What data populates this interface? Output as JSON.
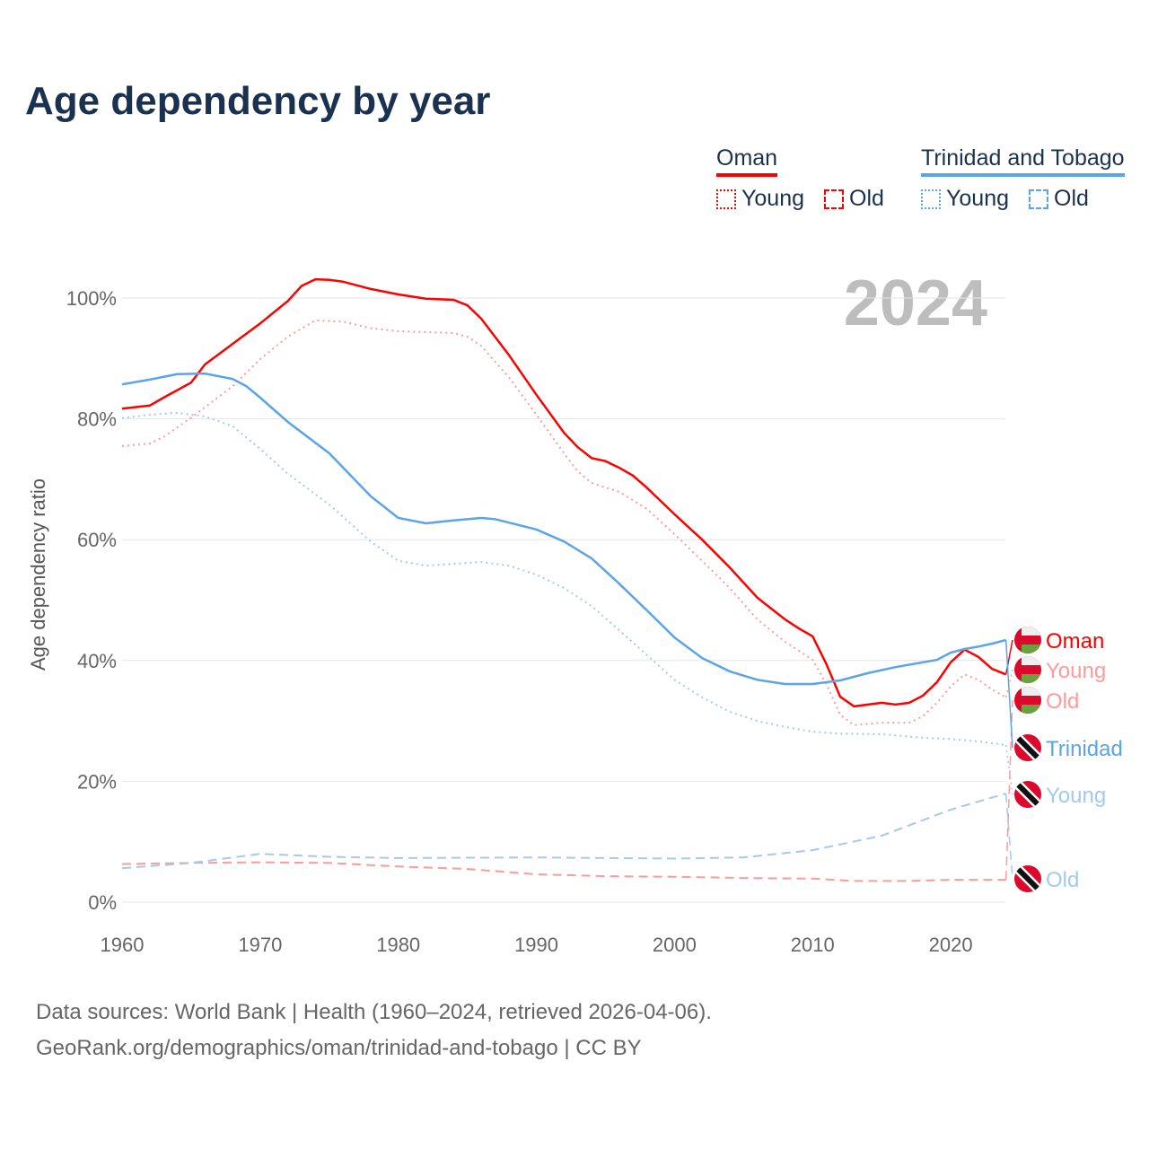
{
  "title": "Age dependency by year",
  "legend": {
    "groups": [
      {
        "name": "Oman",
        "color": "#ff0000",
        "items": [
          "Young",
          "Old"
        ]
      },
      {
        "name": "Trinidad and Tobago",
        "color": "#5ba3ea",
        "items": [
          "Young",
          "Old"
        ]
      }
    ]
  },
  "source": {
    "line1": "Data sources: World Bank | Health (1960–2024, retrieved 2026-04-06).",
    "line2": "GeoRank.org/demographics/oman/trinidad-and-tobago | CC BY"
  },
  "chart_data": {
    "type": "line",
    "title": "Age dependency by year",
    "xlabel": "",
    "ylabel": "Age dependency ratio",
    "year_label": "2024",
    "xlim": [
      1960,
      2024
    ],
    "ylim": [
      0,
      100
    ],
    "xticks": [
      "1960",
      "1970",
      "1980",
      "1990",
      "2000",
      "2010",
      "2020"
    ],
    "yticks": [
      "0%",
      "20%",
      "40%",
      "60%",
      "80%",
      "100%"
    ],
    "series": [
      {
        "name": "Oman",
        "end_label": "Oman",
        "color": "#ff0000",
        "dash": "solid",
        "points": [
          [
            1960,
            81.7
          ],
          [
            1962,
            82.2
          ],
          [
            1963,
            83.5
          ],
          [
            1965,
            86
          ],
          [
            1966,
            89
          ],
          [
            1968,
            92.4
          ],
          [
            1970,
            95.8
          ],
          [
            1972,
            99.5
          ],
          [
            1973,
            102
          ],
          [
            1974,
            103.1
          ],
          [
            1975,
            103
          ],
          [
            1976,
            102.7
          ],
          [
            1978,
            101.5
          ],
          [
            1980,
            100.6
          ],
          [
            1982,
            99.9
          ],
          [
            1984,
            99.7
          ],
          [
            1985,
            98.8
          ],
          [
            1986,
            96.6
          ],
          [
            1988,
            90.6
          ],
          [
            1990,
            84
          ],
          [
            1992,
            77.7
          ],
          [
            1993,
            75.3
          ],
          [
            1994,
            73.5
          ],
          [
            1995,
            73
          ],
          [
            1996,
            71.9
          ],
          [
            1997,
            70.6
          ],
          [
            1998,
            68.6
          ],
          [
            2000,
            64.2
          ],
          [
            2002,
            60
          ],
          [
            2004,
            55.4
          ],
          [
            2006,
            50.4
          ],
          [
            2008,
            46.8
          ],
          [
            2009,
            45.3
          ],
          [
            2010,
            44
          ],
          [
            2011,
            39.4
          ],
          [
            2012,
            34
          ],
          [
            2013,
            32.4
          ],
          [
            2015,
            33
          ],
          [
            2016,
            32.7
          ],
          [
            2017,
            33
          ],
          [
            2018,
            34.2
          ],
          [
            2019,
            36.4
          ],
          [
            2020,
            39.7
          ],
          [
            2021,
            41.8
          ],
          [
            2022,
            40.6
          ],
          [
            2023,
            38.6
          ],
          [
            2024,
            37.7
          ]
        ]
      },
      {
        "name": "Oman Young",
        "end_label": "Young",
        "color": "#ff9a9a",
        "dash": "dotted",
        "points": [
          [
            1960,
            75.5
          ],
          [
            1962,
            75.9
          ],
          [
            1963,
            77
          ],
          [
            1965,
            80.2
          ],
          [
            1968,
            85.4
          ],
          [
            1970,
            89.9
          ],
          [
            1972,
            93.6
          ],
          [
            1974,
            96.3
          ],
          [
            1976,
            96.1
          ],
          [
            1978,
            95
          ],
          [
            1980,
            94.5
          ],
          [
            1984,
            94.2
          ],
          [
            1985,
            93.6
          ],
          [
            1986,
            92.1
          ],
          [
            1988,
            86.9
          ],
          [
            1990,
            80.7
          ],
          [
            1992,
            74.3
          ],
          [
            1993,
            71.3
          ],
          [
            1994,
            69.4
          ],
          [
            1996,
            67.9
          ],
          [
            1998,
            65.1
          ],
          [
            2000,
            60.9
          ],
          [
            2002,
            56.5
          ],
          [
            2004,
            52
          ],
          [
            2006,
            46.8
          ],
          [
            2008,
            43.1
          ],
          [
            2010,
            40.1
          ],
          [
            2011,
            36.1
          ],
          [
            2012,
            31
          ],
          [
            2013,
            29.3
          ],
          [
            2015,
            29.7
          ],
          [
            2017,
            29.7
          ],
          [
            2018,
            30.8
          ],
          [
            2019,
            33
          ],
          [
            2020,
            35.7
          ],
          [
            2021,
            37.7
          ],
          [
            2022,
            36.8
          ],
          [
            2023,
            35.2
          ],
          [
            2024,
            33.9
          ]
        ]
      },
      {
        "name": "Oman Old",
        "end_label": "Old",
        "color": "#ff9a9a",
        "dash": "dashed",
        "points": [
          [
            1960,
            6.3
          ],
          [
            1965,
            6.5
          ],
          [
            1970,
            6.6
          ],
          [
            1975,
            6.5
          ],
          [
            1980,
            5.9
          ],
          [
            1985,
            5.5
          ],
          [
            1990,
            4.6
          ],
          [
            1995,
            4.3
          ],
          [
            2000,
            4.2
          ],
          [
            2005,
            4
          ],
          [
            2010,
            3.9
          ],
          [
            2013,
            3.5
          ],
          [
            2017,
            3.5
          ],
          [
            2020,
            3.7
          ],
          [
            2024,
            3.7
          ]
        ]
      },
      {
        "name": "Trinidad and Tobago",
        "end_label": "Trinidad",
        "color": "#5ba3ea",
        "dash": "solid",
        "points": [
          [
            1960,
            85.7
          ],
          [
            1962,
            86.5
          ],
          [
            1964,
            87.4
          ],
          [
            1966,
            87.5
          ],
          [
            1968,
            86.6
          ],
          [
            1969,
            85.4
          ],
          [
            1970,
            83.5
          ],
          [
            1972,
            79.5
          ],
          [
            1975,
            74.3
          ],
          [
            1978,
            67.2
          ],
          [
            1980,
            63.6
          ],
          [
            1982,
            62.7
          ],
          [
            1984,
            63.2
          ],
          [
            1986,
            63.6
          ],
          [
            1987,
            63.4
          ],
          [
            1990,
            61.7
          ],
          [
            1992,
            59.7
          ],
          [
            1994,
            56.9
          ],
          [
            1996,
            52.7
          ],
          [
            1998,
            48.3
          ],
          [
            2000,
            43.8
          ],
          [
            2002,
            40.4
          ],
          [
            2004,
            38.2
          ],
          [
            2006,
            36.8
          ],
          [
            2008,
            36.1
          ],
          [
            2010,
            36.1
          ],
          [
            2012,
            36.7
          ],
          [
            2014,
            37.9
          ],
          [
            2016,
            38.9
          ],
          [
            2018,
            39.7
          ],
          [
            2019,
            40.1
          ],
          [
            2020,
            41.3
          ],
          [
            2021,
            41.9
          ],
          [
            2022,
            42.3
          ],
          [
            2023,
            42.8
          ],
          [
            2024,
            43.4
          ]
        ]
      },
      {
        "name": "Trinidad and Tobago Young",
        "end_label": "Young",
        "color": "#a3c9f0",
        "dash": "dotted",
        "points": [
          [
            1960,
            80.1
          ],
          [
            1962,
            80.7
          ],
          [
            1964,
            81
          ],
          [
            1966,
            80.4
          ],
          [
            1968,
            78.8
          ],
          [
            1970,
            75
          ],
          [
            1972,
            70.9
          ],
          [
            1975,
            65.8
          ],
          [
            1978,
            59.7
          ],
          [
            1980,
            56.5
          ],
          [
            1982,
            55.7
          ],
          [
            1984,
            56
          ],
          [
            1986,
            56.3
          ],
          [
            1988,
            55.7
          ],
          [
            1990,
            54.2
          ],
          [
            1992,
            52
          ],
          [
            1994,
            49
          ],
          [
            1996,
            45
          ],
          [
            1998,
            40.9
          ],
          [
            2000,
            36.8
          ],
          [
            2002,
            33.9
          ],
          [
            2004,
            31.5
          ],
          [
            2006,
            30
          ],
          [
            2008,
            29
          ],
          [
            2010,
            28.2
          ],
          [
            2012,
            27.9
          ],
          [
            2015,
            27.8
          ],
          [
            2018,
            27.2
          ],
          [
            2020,
            27
          ],
          [
            2022,
            26.6
          ],
          [
            2024,
            26
          ]
        ]
      },
      {
        "name": "Trinidad and Tobago Old",
        "end_label": "Old",
        "color": "#a3c9f0",
        "dash": "dashed",
        "points": [
          [
            1960,
            5.6
          ],
          [
            1965,
            6.5
          ],
          [
            1970,
            8
          ],
          [
            1975,
            7.5
          ],
          [
            1980,
            7.3
          ],
          [
            1990,
            7.4
          ],
          [
            2000,
            7.2
          ],
          [
            2005,
            7.4
          ],
          [
            2010,
            8.6
          ],
          [
            2015,
            11
          ],
          [
            2020,
            15.3
          ],
          [
            2024,
            18
          ]
        ]
      }
    ]
  }
}
